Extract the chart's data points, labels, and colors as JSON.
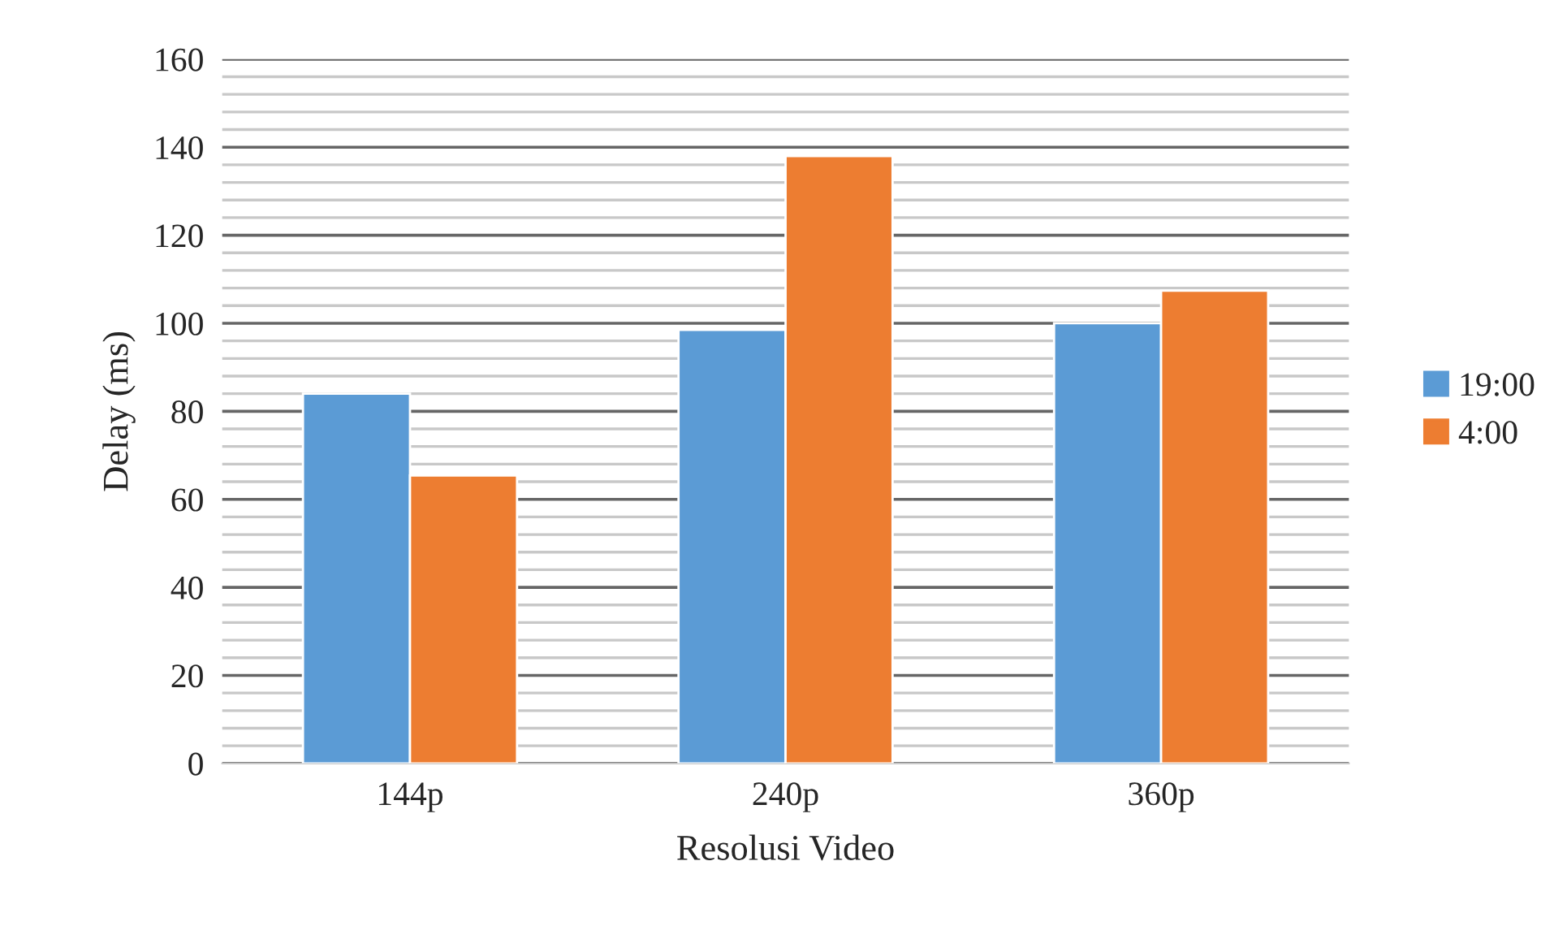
{
  "chart_data": {
    "type": "bar",
    "xlabel": "Resolusi Video",
    "ylabel": "Delay (ms)",
    "categories": [
      "144p",
      "240p",
      "360p"
    ],
    "series": [
      {
        "name": "19:00",
        "color": "#5b9bd5",
        "values": [
          84,
          98.5,
          100
        ]
      },
      {
        "name": "4:00",
        "color": "#ed7d31",
        "values": [
          65.4,
          138,
          107.4
        ]
      }
    ],
    "ylim": [
      0,
      160
    ],
    "yticks": [
      0,
      {
        "value": 4,
        "label": null
      },
      {
        "value": 8,
        "label": null
      },
      {
        "value": 12,
        "label": null
      },
      {
        "value": 16,
        "label": null
      },
      20,
      {
        "value": 24,
        "label": null
      },
      {
        "value": 28,
        "label": null
      },
      {
        "value": 32,
        "label": null
      },
      {
        "value": 36,
        "label": null
      },
      40,
      {
        "value": 44,
        "label": null
      },
      {
        "value": 48,
        "label": null
      },
      {
        "value": 52,
        "label": null
      },
      {
        "value": 56,
        "label": null
      },
      60,
      {
        "value": 64,
        "label": null
      },
      {
        "value": 68,
        "label": null
      },
      {
        "value": 72,
        "label": null
      },
      {
        "value": 76,
        "label": null
      },
      80,
      {
        "value": 84,
        "label": null
      },
      {
        "value": 88,
        "label": null
      },
      {
        "value": 92,
        "label": null
      },
      {
        "value": 96,
        "label": null
      },
      100,
      {
        "value": 104,
        "label": null
      },
      {
        "value": 108,
        "label": null
      },
      {
        "value": 112,
        "label": null
      },
      {
        "value": 116,
        "label": null
      },
      120,
      {
        "value": 124,
        "label": null
      },
      {
        "value": 128,
        "label": null
      },
      {
        "value": 132,
        "label": null
      },
      {
        "value": 136,
        "label": null
      },
      140,
      {
        "value": 144,
        "label": null
      },
      {
        "value": 148,
        "label": null
      },
      {
        "value": 152,
        "label": null
      },
      {
        "value": 156,
        "label": null
      },
      160
    ],
    "grid": "y",
    "legend": "right"
  }
}
